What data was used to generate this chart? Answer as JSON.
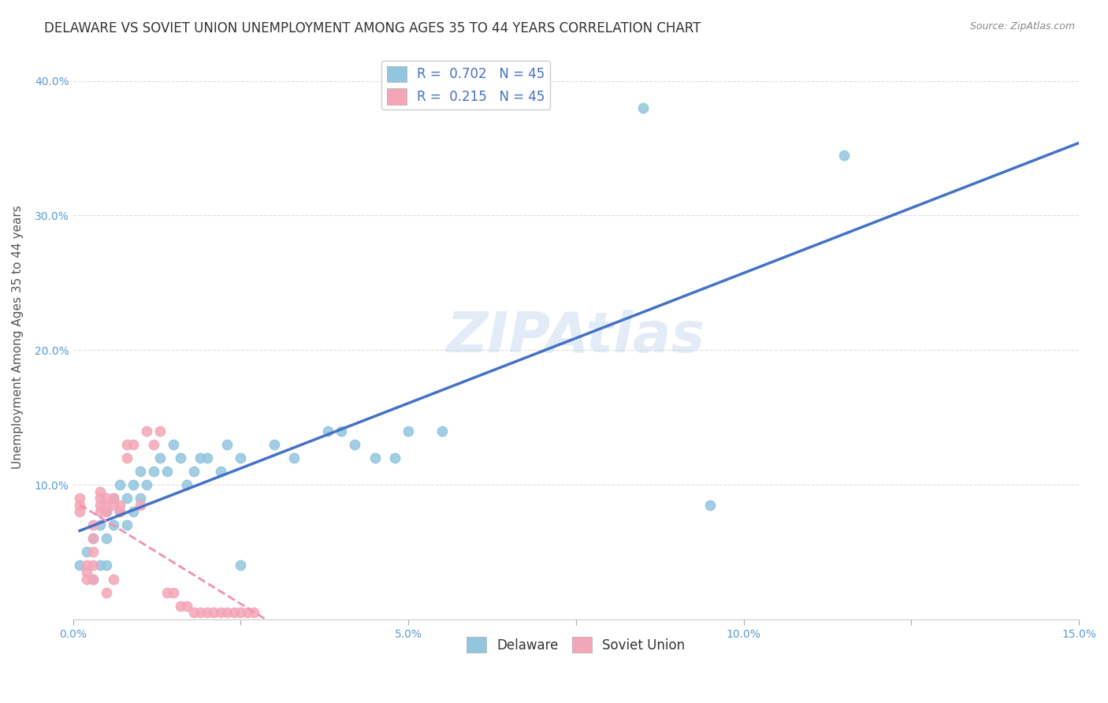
{
  "title": "DELAWARE VS SOVIET UNION UNEMPLOYMENT AMONG AGES 35 TO 44 YEARS CORRELATION CHART",
  "source": "Source: ZipAtlas.com",
  "ylabel": "Unemployment Among Ages 35 to 44 years",
  "xlabel": "",
  "xlim": [
    0.0,
    0.15
  ],
  "ylim": [
    0.0,
    0.42
  ],
  "xticks": [
    0.0,
    0.025,
    0.05,
    0.075,
    0.1,
    0.125,
    0.15
  ],
  "xtick_labels": [
    "0.0%",
    "",
    "5.0%",
    "",
    "10.0%",
    "",
    "15.0%"
  ],
  "yticks": [
    0.0,
    0.1,
    0.2,
    0.3,
    0.4
  ],
  "ytick_labels": [
    "",
    "10.0%",
    "20.0%",
    "30.0%",
    "40.0%"
  ],
  "delaware_color": "#92C5DE",
  "soviet_color": "#F4A6B8",
  "delaware_R": 0.702,
  "soviet_R": 0.215,
  "N": 45,
  "legend_label_delaware": "Delaware",
  "legend_label_soviet": "Soviet Union",
  "watermark": "ZIPAtlas",
  "title_color": "#333333",
  "axis_color": "#5B9BD5",
  "delaware_x": [
    0.001,
    0.002,
    0.003,
    0.003,
    0.004,
    0.004,
    0.005,
    0.005,
    0.005,
    0.006,
    0.006,
    0.007,
    0.007,
    0.008,
    0.008,
    0.009,
    0.009,
    0.01,
    0.01,
    0.011,
    0.012,
    0.013,
    0.014,
    0.015,
    0.016,
    0.017,
    0.018,
    0.019,
    0.02,
    0.022,
    0.023,
    0.025,
    0.025,
    0.03,
    0.033,
    0.038,
    0.04,
    0.042,
    0.045,
    0.048,
    0.05,
    0.055,
    0.085,
    0.095,
    0.115
  ],
  "delaware_y": [
    0.04,
    0.05,
    0.06,
    0.03,
    0.07,
    0.04,
    0.08,
    0.06,
    0.04,
    0.09,
    0.07,
    0.1,
    0.08,
    0.09,
    0.07,
    0.1,
    0.08,
    0.11,
    0.09,
    0.1,
    0.11,
    0.12,
    0.11,
    0.13,
    0.12,
    0.1,
    0.11,
    0.12,
    0.12,
    0.11,
    0.13,
    0.12,
    0.04,
    0.13,
    0.12,
    0.14,
    0.14,
    0.13,
    0.12,
    0.12,
    0.14,
    0.14,
    0.38,
    0.085,
    0.345
  ],
  "soviet_x": [
    0.001,
    0.001,
    0.001,
    0.002,
    0.002,
    0.002,
    0.003,
    0.003,
    0.003,
    0.003,
    0.003,
    0.004,
    0.004,
    0.004,
    0.004,
    0.005,
    0.005,
    0.005,
    0.005,
    0.006,
    0.006,
    0.006,
    0.007,
    0.007,
    0.008,
    0.008,
    0.009,
    0.01,
    0.011,
    0.012,
    0.013,
    0.014,
    0.015,
    0.016,
    0.017,
    0.018,
    0.019,
    0.02,
    0.021,
    0.022,
    0.023,
    0.024,
    0.025,
    0.026,
    0.027
  ],
  "soviet_y": [
    0.09,
    0.085,
    0.08,
    0.035,
    0.04,
    0.03,
    0.07,
    0.06,
    0.05,
    0.04,
    0.03,
    0.095,
    0.09,
    0.085,
    0.08,
    0.09,
    0.085,
    0.08,
    0.02,
    0.09,
    0.085,
    0.03,
    0.085,
    0.08,
    0.13,
    0.12,
    0.13,
    0.085,
    0.14,
    0.13,
    0.14,
    0.02,
    0.02,
    0.01,
    0.01,
    0.005,
    0.005,
    0.005,
    0.005,
    0.005,
    0.005,
    0.005,
    0.005,
    0.005,
    0.005
  ],
  "background_color": "#ffffff",
  "grid_color": "#dddddd",
  "title_fontsize": 12,
  "axis_label_fontsize": 11,
  "tick_fontsize": 10,
  "dot_size": 80
}
